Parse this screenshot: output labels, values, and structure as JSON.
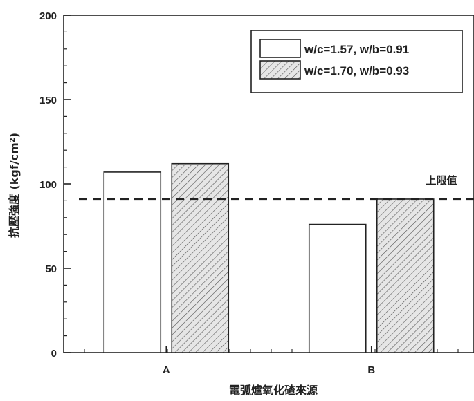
{
  "chart_data": {
    "type": "bar",
    "categories": [
      "A",
      "B"
    ],
    "series": [
      {
        "name": "w/c=1.57, w/b=0.91",
        "values": [
          107,
          76
        ],
        "fill": "#ffffff",
        "pattern": "none"
      },
      {
        "name": "w/c=1.70, w/b=0.93",
        "values": [
          112,
          91
        ],
        "fill": "#e6e6e6",
        "pattern": "diagonal-hatch"
      }
    ],
    "xlabel": "電弧爐氧化碴來源",
    "ylabel": "抗壓強度 (kgf/cm²)",
    "ylabel_parts": {
      "main": "抗壓強度 (kgf/cm",
      "sup": "2",
      "tail": ")"
    },
    "ylim": [
      0,
      200
    ],
    "yticks": [
      0,
      50,
      100,
      150,
      200
    ],
    "reference_line": {
      "value": 91,
      "label": "上限值",
      "style": "dashed"
    },
    "legend_position": "top-right",
    "grid": false
  }
}
